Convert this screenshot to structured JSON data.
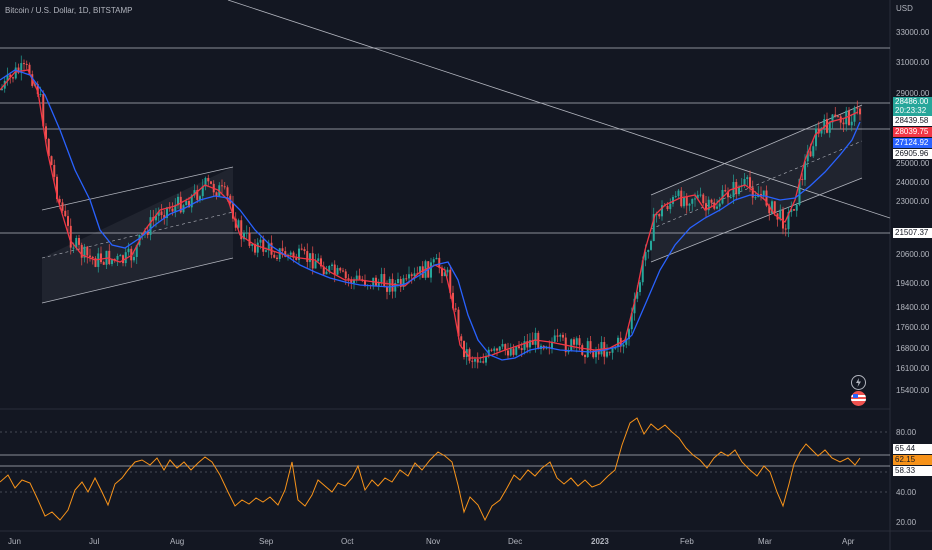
{
  "header": {
    "title": "Bitcoin / U.S. Dollar, 1D, BITSTAMP",
    "currency": "USD"
  },
  "price_axis": [
    "33000.00",
    "31000.00",
    "29000.00",
    "25000.00",
    "24000.00",
    "23000.00",
    "20600.00",
    "19400.00",
    "18400.00",
    "17600.00",
    "16800.00",
    "16100.00",
    "15400.00"
  ],
  "rsi_axis": [
    "80.00",
    "40.00",
    "20.00"
  ],
  "time_axis": [
    "Jun",
    "Jul",
    "Aug",
    "Sep",
    "Oct",
    "Nov",
    "Dec",
    "2023",
    "Feb",
    "Mar",
    "Apr"
  ],
  "price_labels": {
    "last_price": "28486.00",
    "countdown": "20:23:32",
    "level_1": "28439.58",
    "ma_fast": "28039.75",
    "ma_slow": "27124.92",
    "level_2": "26905.96",
    "support_level": "21507.37"
  },
  "rsi_labels": {
    "upper": "65.44",
    "value": "62.15",
    "lower": "58.33"
  },
  "colors": {
    "background": "#131722",
    "up": "#26a69a",
    "down": "#ef5350",
    "ma_fast": "#f23645",
    "ma_slow": "#2962ff",
    "rsi": "#f7931a",
    "lines": "#b2b5be"
  },
  "icons": {
    "lightning": "lightning-icon",
    "flag": "us-flag-icon"
  }
}
